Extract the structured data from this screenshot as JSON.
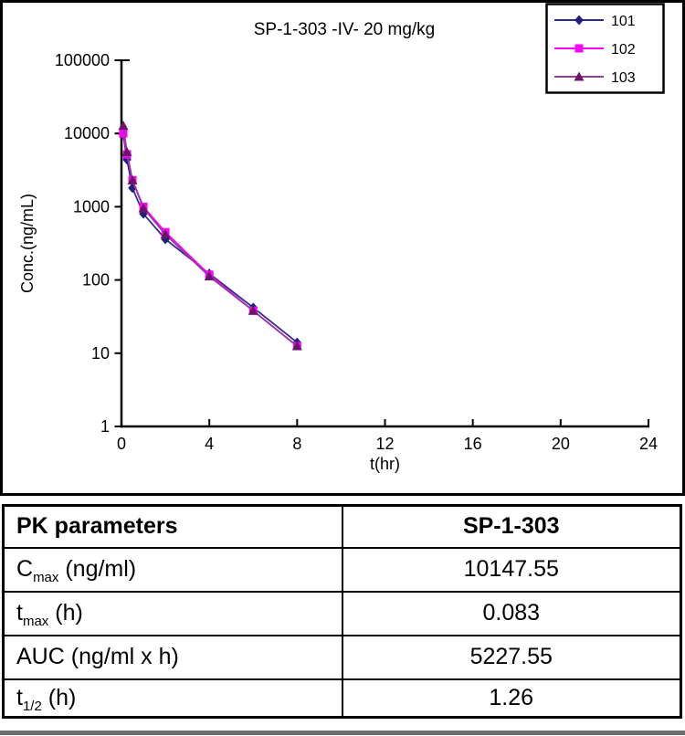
{
  "chart_data": {
    "type": "line",
    "title": "SP-1-303 -IV- 20 mg/kg",
    "xlabel": "t(hr)",
    "ylabel": "Conc.(ng/mL)",
    "x_scale": "linear",
    "y_scale": "log",
    "xlim": [
      0,
      24
    ],
    "ylim": [
      1,
      100000
    ],
    "x_ticks": [
      0,
      4,
      8,
      12,
      16,
      20,
      24
    ],
    "y_ticks": [
      1,
      10,
      100,
      1000,
      10000,
      100000
    ],
    "grid": false,
    "legend_position": "top-right",
    "x": [
      0.083,
      0.25,
      0.5,
      1,
      2,
      4,
      6,
      8
    ],
    "series": [
      {
        "name": "101",
        "marker": "diamond",
        "line_color": "#2B2B8F",
        "marker_color": "#1F1F7E",
        "values": [
          9600,
          4400,
          1800,
          800,
          360,
          122,
          42,
          14
        ]
      },
      {
        "name": "102",
        "marker": "square",
        "line_color": "#FF00FF",
        "marker_color": "#FF00FF",
        "values": [
          10000,
          5200,
          2300,
          1000,
          450,
          118,
          38,
          12.5
        ]
      },
      {
        "name": "103",
        "marker": "triangle",
        "line_color": "#9B3A9B",
        "marker_color": "#6A156A",
        "values": [
          12800,
          5600,
          2300,
          950,
          420,
          112,
          38,
          12.5
        ]
      }
    ]
  },
  "table": {
    "header": {
      "param_label": "PK parameters",
      "compound": "SP-1-303"
    },
    "rows": [
      {
        "base": "C",
        "sub": "max",
        "unit": " (ng/ml)",
        "value": "10147.55"
      },
      {
        "base": "t",
        "sub": "max",
        "unit": " (h)",
        "value": "0.083"
      },
      {
        "base": "AUC",
        "sub": "",
        "unit": " (ng/ml x h)",
        "value": "5227.55"
      },
      {
        "base": "t",
        "sub": "1/2",
        "unit": " (h)",
        "value": "1.26"
      }
    ]
  }
}
